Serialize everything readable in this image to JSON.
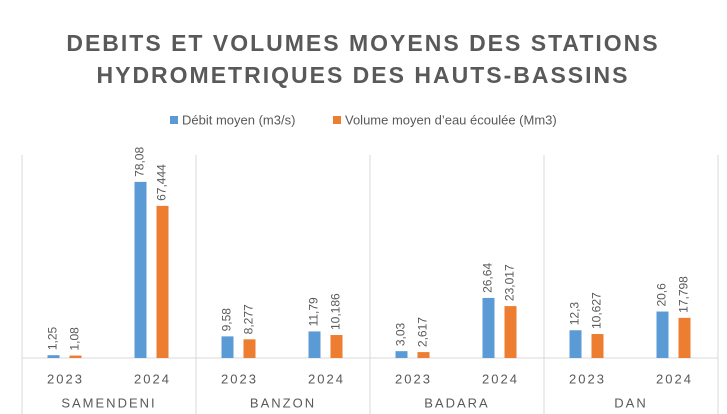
{
  "chart_data": {
    "type": "bar",
    "title": [
      "DEBITS ET VOLUMES MOYENS DES STATIONS",
      "HYDROMETRIQUES DES HAUTS-BASSINS"
    ],
    "groups": [
      "SAMENDENI",
      "BANZON",
      "BADARA",
      "DAN"
    ],
    "categories": [
      "2023",
      "2024",
      "2023",
      "2024",
      "2023",
      "2024",
      "2023",
      "2024"
    ],
    "series": [
      {
        "name": "Débit moyen (m3/s)",
        "color": "#5b9bd5",
        "values": [
          1.25,
          78.08,
          9.58,
          11.79,
          3.03,
          26.64,
          12.3,
          20.6
        ],
        "value_labels": [
          "1,25",
          "78,08",
          "9,58",
          "11,79",
          "3,03",
          "26,64",
          "12,3",
          "20,6"
        ]
      },
      {
        "name": "Volume moyen d’eau écoulée (Mm3)",
        "color": "#ed7d31",
        "values": [
          1.08,
          67.444,
          8.277,
          10.186,
          2.617,
          23.017,
          10.627,
          17.798
        ],
        "value_labels": [
          "1,08",
          "67,444",
          "8,277",
          "10,186",
          "2,617",
          "23,017",
          "10,627",
          "17,798"
        ]
      }
    ],
    "ylim": [
      0,
      90
    ]
  }
}
